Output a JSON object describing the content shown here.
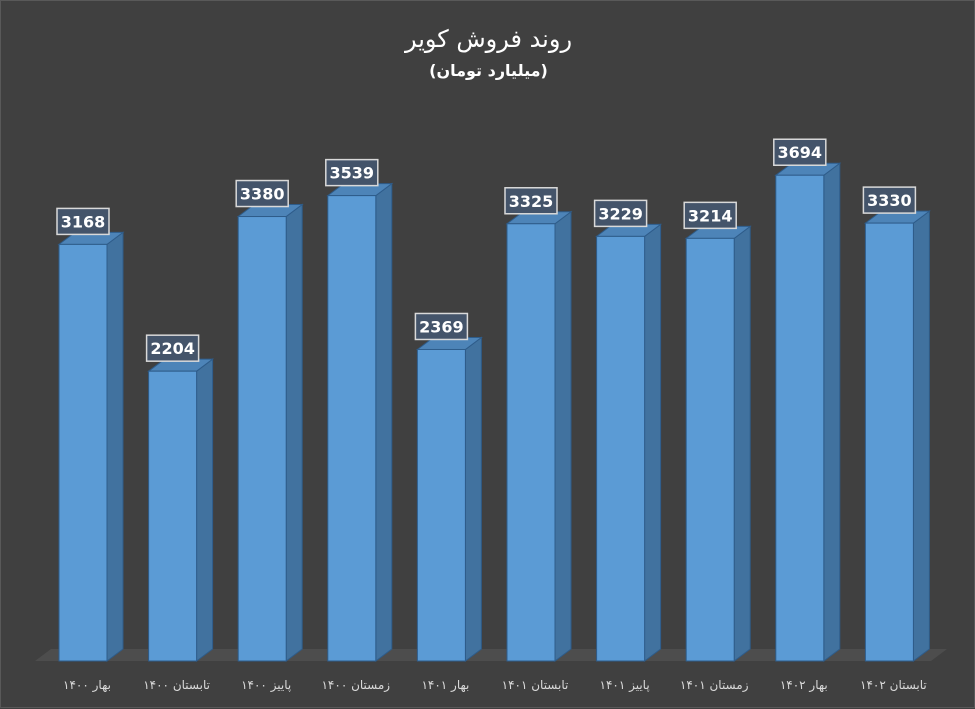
{
  "chart_data": {
    "type": "bar",
    "title": "روند فروش کویر",
    "subtitle": "(میلیارد تومان)",
    "categories": [
      "بهار ۱۴۰۰",
      "تابستان ۱۴۰۰",
      "پاییز ۱۴۰۰",
      "زمستان ۱۴۰۰",
      "بهار ۱۴۰۱",
      "تابستان ۱۴۰۱",
      "پاییز ۱۴۰۱",
      "زمستان ۱۴۰۱",
      "بهار ۱۴۰۲",
      "تابستان ۱۴۰۲"
    ],
    "values": [
      3168,
      2204,
      3380,
      3539,
      2369,
      3325,
      3229,
      3214,
      3694,
      3330
    ],
    "ylim": [
      0,
      4700
    ],
    "grid": false,
    "legend": "none",
    "style": "3d-column",
    "colors": {
      "background": "#404040",
      "bar_front": "#5b9bd5",
      "bar_side": "#41729f",
      "bar_top": "#4d84b8",
      "bar_edge": "#2e5c8a",
      "floor": "#4d4d4d",
      "label_fill": "#44546a",
      "label_border": "#d9d9d9",
      "text": "#ffffff",
      "category_text": "#d9d9d9"
    }
  }
}
